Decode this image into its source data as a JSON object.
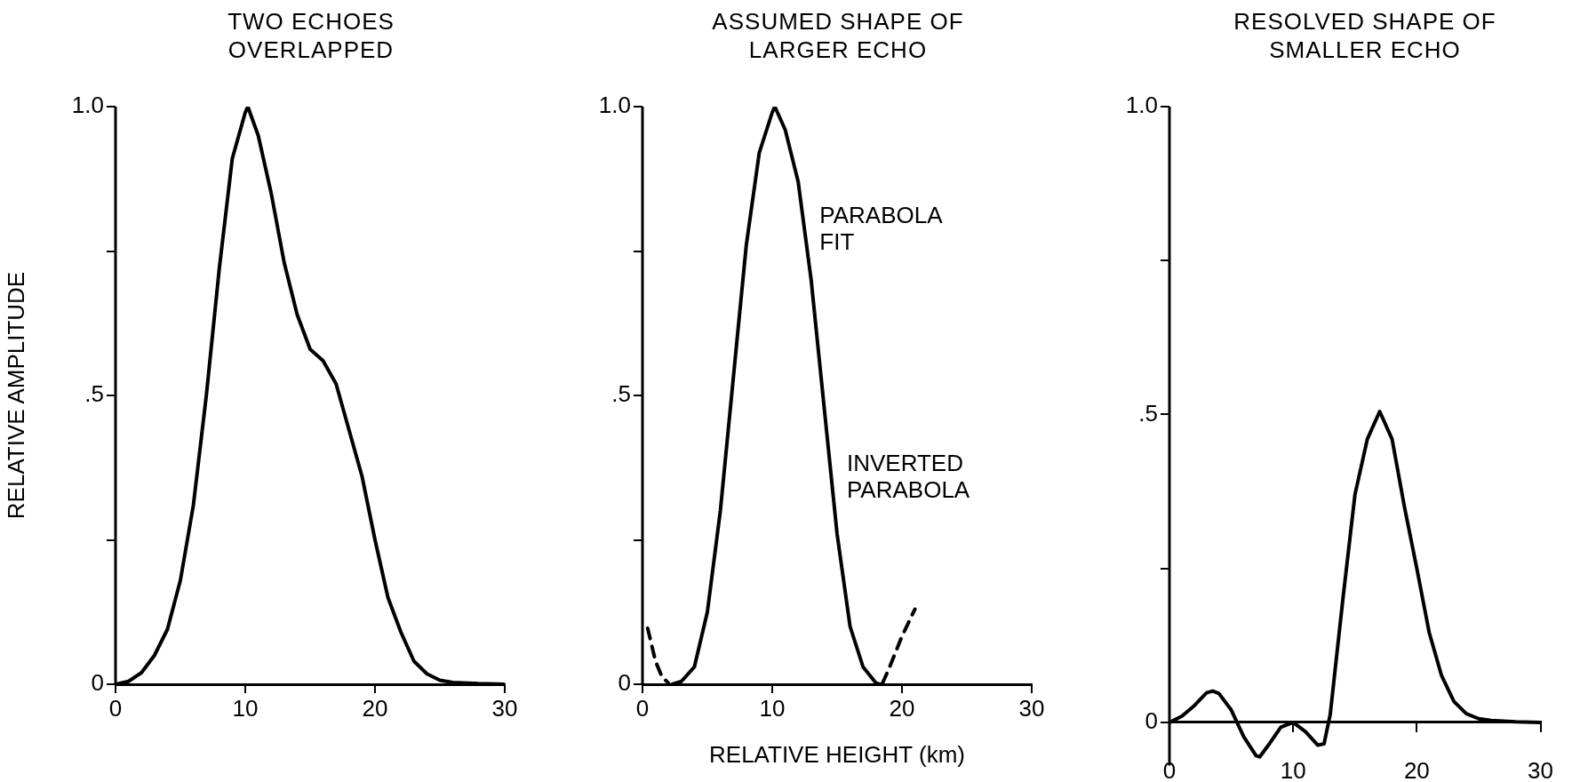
{
  "chart_data": [
    {
      "type": "line",
      "title": "TWO ECHOES OVERLAPPED",
      "ylabel": "RELATIVE AMPLITUDE",
      "xlim": [
        0,
        30
      ],
      "xticks": [
        0,
        10,
        20,
        30
      ],
      "ylim": [
        0,
        1
      ],
      "yticks": [
        {
          "value": 0,
          "label": "0"
        },
        {
          "value": 0.25,
          "label": null
        },
        {
          "value": 0.5,
          "label": ".5"
        },
        {
          "value": 0.75,
          "label": null
        },
        {
          "value": 1,
          "label": "1.0"
        }
      ],
      "grid": false,
      "legend": false,
      "marker": "none",
      "series": [
        {
          "color": "#000000",
          "line_style": "solid",
          "x": [
            0,
            1,
            2,
            3,
            4,
            5,
            6,
            7,
            8,
            9,
            10,
            10.2,
            11,
            12,
            13,
            14,
            15,
            16,
            17,
            18,
            19,
            20,
            21,
            22,
            23,
            24,
            25,
            26,
            28,
            30
          ],
          "values": [
            0,
            0.005,
            0.02,
            0.05,
            0.095,
            0.18,
            0.31,
            0.5,
            0.72,
            0.91,
            0.99,
            1.0,
            0.95,
            0.85,
            0.73,
            0.64,
            0.58,
            0.56,
            0.52,
            0.44,
            0.36,
            0.25,
            0.15,
            0.09,
            0.04,
            0.018,
            0.007,
            0.003,
            0.001,
            0
          ]
        }
      ]
    },
    {
      "type": "line",
      "title": "ASSUMED SHAPE OF LARGER ECHO",
      "xlabel": "RELATIVE HEIGHT (km)",
      "xlim": [
        0,
        30
      ],
      "xticks": [
        0,
        10,
        20,
        30
      ],
      "ylim": [
        0,
        1
      ],
      "yticks": [
        {
          "value": 0,
          "label": "0"
        },
        {
          "value": 0.25,
          "label": null
        },
        {
          "value": 0.5,
          "label": ".5"
        },
        {
          "value": 0.75,
          "label": null
        },
        {
          "value": 1,
          "label": "1.0"
        }
      ],
      "grid": false,
      "legend": false,
      "marker": "none",
      "series": [
        {
          "color": "#000000",
          "line_style": "solid",
          "x": [
            2.3,
            3,
            4,
            5,
            6,
            7,
            8,
            9,
            10,
            10.2,
            11,
            12,
            13,
            14,
            15,
            16,
            17,
            18,
            18.3
          ],
          "values": [
            0,
            0.005,
            0.03,
            0.125,
            0.3,
            0.53,
            0.76,
            0.92,
            0.99,
            1.0,
            0.96,
            0.87,
            0.7,
            0.48,
            0.26,
            0.1,
            0.03,
            0.002,
            0
          ]
        },
        {
          "color": "#000000",
          "line_style": "dashed",
          "x": [
            0.4,
            1,
            1.5,
            2,
            10,
            18.5,
            19,
            20,
            21
          ],
          "values": [
            0.097,
            0.04,
            0.013,
            0.002,
            null,
            0.002,
            0.027,
            0.083,
            0.13
          ]
        }
      ],
      "annotations": [
        "PARABOLA\nFIT",
        "INVERTED\nPARABOLA"
      ]
    },
    {
      "type": "line",
      "title": "RESOLVED SHAPE OF SMALLER ECHO",
      "xlim": [
        0,
        30
      ],
      "xticks": [
        0,
        10,
        20,
        30
      ],
      "ylim": [
        -0.07,
        1
      ],
      "yticks": [
        {
          "value": 0,
          "label": "0"
        },
        {
          "value": 0.25,
          "label": null
        },
        {
          "value": 0.5,
          "label": ".5"
        },
        {
          "value": 0.75,
          "label": null
        },
        {
          "value": 1,
          "label": "1.0"
        }
      ],
      "grid": false,
      "legend": false,
      "marker": "none",
      "series": [
        {
          "color": "#000000",
          "line_style": "solid",
          "x": [
            0,
            1,
            2,
            3,
            3.5,
            4,
            5,
            6,
            7,
            7.3,
            8,
            9,
            10,
            11,
            12,
            12.5,
            13,
            14,
            15,
            16,
            17,
            18,
            19,
            20,
            21,
            22,
            23,
            24,
            25,
            26,
            28,
            30
          ],
          "values": [
            0,
            0.01,
            0.027,
            0.048,
            0.051,
            0.047,
            0.02,
            -0.023,
            -0.054,
            -0.056,
            -0.037,
            -0.008,
            0,
            -0.015,
            -0.037,
            -0.035,
            0.013,
            0.196,
            0.37,
            0.46,
            0.505,
            0.46,
            0.35,
            0.25,
            0.146,
            0.076,
            0.034,
            0.014,
            0.006,
            0.003,
            0.001,
            0
          ]
        }
      ]
    }
  ]
}
